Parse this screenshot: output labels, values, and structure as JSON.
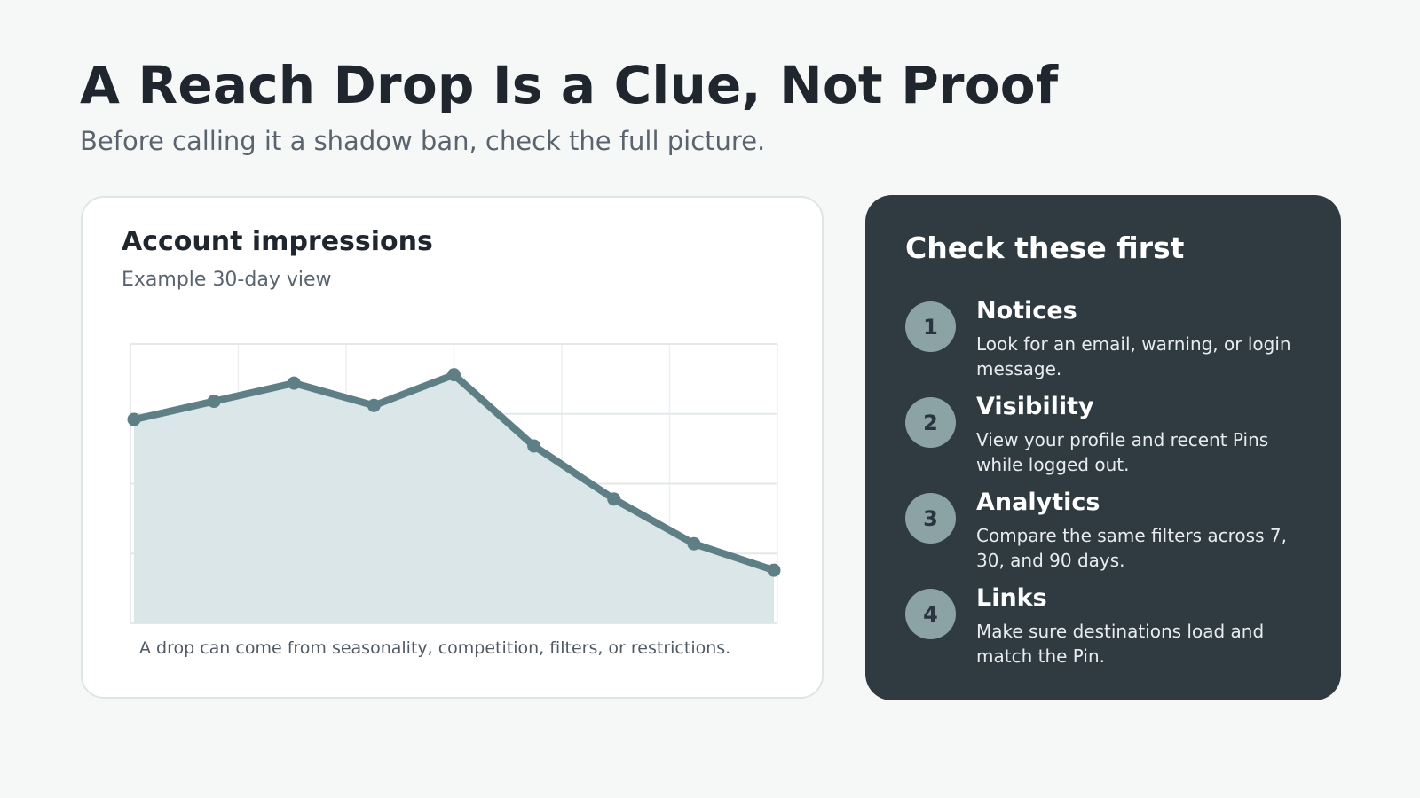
{
  "header": {
    "title": "A Reach Drop Is a Clue, Not Proof",
    "subtitle": "Before calling it a shadow ban, check the full picture."
  },
  "chart_card": {
    "title": "Account impressions",
    "subtitle": "Example 30-day view",
    "note": "A drop can come from seasonality, competition, filters, or restrictions."
  },
  "chart_data": {
    "type": "area",
    "title": "Account impressions",
    "subtitle": "Example 30-day view",
    "xlabel": "",
    "ylabel": "",
    "x": [
      1,
      2,
      3,
      4,
      5,
      6,
      7,
      8,
      9
    ],
    "xlim": [
      1,
      9
    ],
    "ylim": [
      0,
      100
    ],
    "grid": true,
    "legend": "none",
    "series": [
      {
        "values": [
          73,
          79.5,
          86,
          78,
          89,
          63.5,
          44.5,
          28.5,
          19
        ]
      }
    ],
    "colors": {
      "line": "#5f7f86",
      "fill": "#dbe6e8",
      "grid": "#e4e8ea"
    }
  },
  "checklist": {
    "title": "Check these first",
    "items": [
      {
        "number": "1",
        "heading": "Notices",
        "text": "Look for an email, warning, or login message."
      },
      {
        "number": "2",
        "heading": "Visibility",
        "text": "View your profile and recent Pins while logged out."
      },
      {
        "number": "3",
        "heading": "Analytics",
        "text": "Compare the same filters across 7, 30, and 90 days."
      },
      {
        "number": "4",
        "heading": "Links",
        "text": "Make sure destinations load and match the Pin."
      }
    ]
  }
}
